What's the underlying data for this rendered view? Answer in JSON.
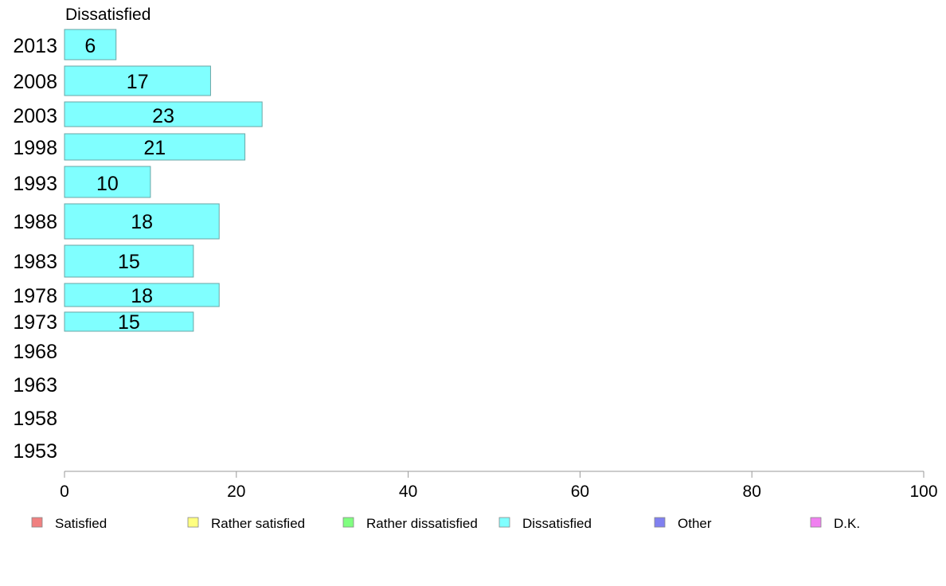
{
  "chart_data": {
    "type": "bar",
    "orientation": "horizontal",
    "panel_title": "Dissatisfied",
    "categories": [
      "2013",
      "2008",
      "2003",
      "1998",
      "1993",
      "1988",
      "1983",
      "1978",
      "1973",
      "1968",
      "1963",
      "1958",
      "1953"
    ],
    "series": [
      {
        "name": "Dissatisfied",
        "color": "#80ffff",
        "values": [
          6,
          17,
          23,
          21,
          10,
          18,
          15,
          18,
          15,
          null,
          null,
          null,
          null
        ]
      }
    ],
    "xlim": [
      0,
      100
    ],
    "xticks": [
      "0",
      "20",
      "40",
      "60",
      "80",
      "100"
    ],
    "grid": false,
    "legend_position": "bottom",
    "legend": [
      {
        "label": "Satisfied",
        "color": "#f08080"
      },
      {
        "label": "Rather satisfied",
        "color": "#ffff80"
      },
      {
        "label": "Rather dissatisfied",
        "color": "#80ff80"
      },
      {
        "label": "Dissatisfied",
        "color": "#80ffff"
      },
      {
        "label": "Other",
        "color": "#8080f0"
      },
      {
        "label": "D.K.",
        "color": "#f080f0"
      }
    ]
  }
}
